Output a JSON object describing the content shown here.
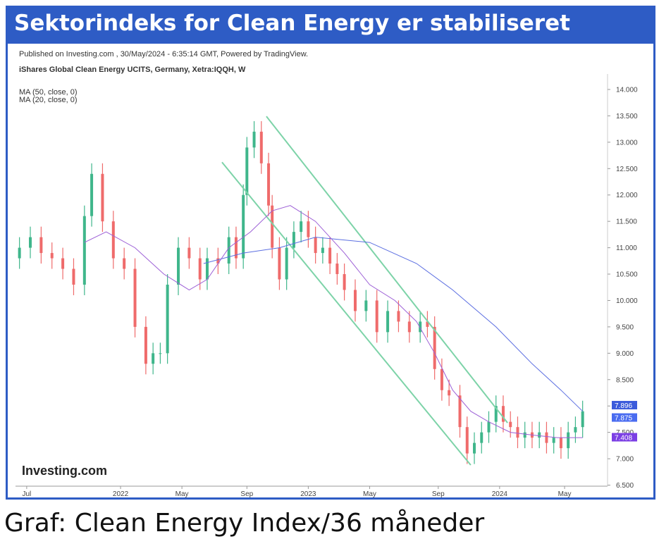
{
  "header": {
    "title": "Sektorindeks for Clean Energy er stabiliseret"
  },
  "caption": "Graf: Clean Energy Index/36 måneder",
  "chart_data": {
    "type": "candlestick",
    "published": "Published on Investing.com , 30/May/2024 - 6:35:14 GMT, Powered by TradingView.",
    "instrument": "iShares Global Clean Energy UCITS, Germany, Xetra:IQQH, W",
    "logo": "Investing.com",
    "up_color": "#3fb68b",
    "down_color": "#ef6b6b",
    "x": [
      -2,
      1,
      4,
      7,
      10,
      13,
      16,
      18,
      21,
      24,
      27,
      30,
      33,
      35,
      37,
      39,
      42,
      45,
      48,
      50,
      53,
      56,
      58,
      60,
      61,
      63,
      65,
      67,
      68,
      70,
      72,
      74,
      76,
      78,
      80,
      82,
      84,
      86,
      88,
      91,
      94,
      97,
      100,
      103,
      106,
      109,
      111,
      113,
      115,
      117,
      120,
      122,
      124,
      126,
      128,
      130,
      132,
      134,
      136,
      138,
      140,
      142,
      144,
      146,
      148,
      150,
      152,
      154
    ],
    "open": [
      10.8,
      11.0,
      11.2,
      10.9,
      10.8,
      10.6,
      10.3,
      11.6,
      12.4,
      11.5,
      10.8,
      10.6,
      9.5,
      8.8,
      9.0,
      9.0,
      10.3,
      11.0,
      10.8,
      10.4,
      10.8,
      10.7,
      11.2,
      10.8,
      12.0,
      12.9,
      13.2,
      12.6,
      11.8,
      11.0,
      10.4,
      11.0,
      11.3,
      11.5,
      11.2,
      10.9,
      11.0,
      10.7,
      10.5,
      10.2,
      9.8,
      10.0,
      9.4,
      9.8,
      9.6,
      9.4,
      9.6,
      9.5,
      8.7,
      8.3,
      8.2,
      7.6,
      7.1,
      7.3,
      7.5,
      7.7,
      8.0,
      7.7,
      7.6,
      7.4,
      7.5,
      7.4,
      7.5,
      7.3,
      7.4,
      7.2,
      7.5,
      7.6
    ],
    "high": [
      11.2,
      11.4,
      11.4,
      11.1,
      11.0,
      10.8,
      11.8,
      12.6,
      12.6,
      11.7,
      11.0,
      10.8,
      9.7,
      9.2,
      9.2,
      10.5,
      11.2,
      11.2,
      11.0,
      11.0,
      11.0,
      11.4,
      11.4,
      12.2,
      13.1,
      13.4,
      13.4,
      12.8,
      12.0,
      11.2,
      11.2,
      11.5,
      11.7,
      11.7,
      11.4,
      11.2,
      11.2,
      10.9,
      10.7,
      10.4,
      10.2,
      10.2,
      10.0,
      10.0,
      9.8,
      9.8,
      9.8,
      9.7,
      8.9,
      8.5,
      8.4,
      7.8,
      7.5,
      7.7,
      7.9,
      8.2,
      8.2,
      7.9,
      7.8,
      7.7,
      7.7,
      7.7,
      7.7,
      7.6,
      7.6,
      7.7,
      7.8,
      8.1
    ],
    "low": [
      10.6,
      10.8,
      10.7,
      10.6,
      10.4,
      10.1,
      10.1,
      11.4,
      11.3,
      10.6,
      10.4,
      9.3,
      8.6,
      8.6,
      8.8,
      8.8,
      10.1,
      10.6,
      10.2,
      10.2,
      10.5,
      10.5,
      10.6,
      10.6,
      11.8,
      12.7,
      12.4,
      11.6,
      10.8,
      10.2,
      10.2,
      10.8,
      11.1,
      11.0,
      10.7,
      10.7,
      10.5,
      10.3,
      10.0,
      9.6,
      9.6,
      9.2,
      9.2,
      9.4,
      9.2,
      9.2,
      9.3,
      8.5,
      8.1,
      8.0,
      7.4,
      6.9,
      6.9,
      7.1,
      7.3,
      7.5,
      7.5,
      7.4,
      7.2,
      7.2,
      7.2,
      7.2,
      7.1,
      7.1,
      7.0,
      7.0,
      7.3,
      7.4
    ],
    "close": [
      11.0,
      11.2,
      10.9,
      10.8,
      10.6,
      10.3,
      11.6,
      12.4,
      11.5,
      10.8,
      10.6,
      9.5,
      8.8,
      9.0,
      9.0,
      10.3,
      11.0,
      10.8,
      10.4,
      10.8,
      10.7,
      11.2,
      10.8,
      12.0,
      12.9,
      13.2,
      12.6,
      11.8,
      11.0,
      10.4,
      11.0,
      11.3,
      11.5,
      11.2,
      10.9,
      11.0,
      10.7,
      10.5,
      10.2,
      9.8,
      10.0,
      9.4,
      9.8,
      9.6,
      9.4,
      9.6,
      9.5,
      8.7,
      8.3,
      8.2,
      7.6,
      7.1,
      7.3,
      7.5,
      7.7,
      8.0,
      7.7,
      7.6,
      7.4,
      7.5,
      7.4,
      7.5,
      7.3,
      7.4,
      7.2,
      7.5,
      7.6,
      7.9
    ],
    "series": [
      {
        "name": "MA (50, close, 0)",
        "color": "#5b6ee1",
        "x": [
          49,
          60,
          70,
          80,
          95,
          108,
          118,
          130,
          140,
          148,
          154
        ],
        "values": [
          10.7,
          10.9,
          11.0,
          11.2,
          11.1,
          10.7,
          10.2,
          9.5,
          8.8,
          8.3,
          7.9
        ]
      },
      {
        "name": "MA (20, close, 0)",
        "color": "#9c5fd6",
        "x": [
          16,
          22,
          30,
          38,
          45,
          50,
          56,
          62,
          68,
          73,
          80,
          88,
          95,
          102,
          108,
          113,
          118,
          123,
          128,
          134,
          140,
          147,
          154
        ],
        "values": [
          11.1,
          11.3,
          11.0,
          10.5,
          10.2,
          10.4,
          11.0,
          11.3,
          11.7,
          11.8,
          11.5,
          10.9,
          10.3,
          10.0,
          9.6,
          9.0,
          8.3,
          7.9,
          7.7,
          7.5,
          7.45,
          7.4,
          7.4
        ]
      }
    ],
    "trendlines": [
      {
        "color": "#7dd3a8",
        "x": [
          66.4,
          133.2
        ],
        "values": [
          13.49,
          7.68
        ]
      },
      {
        "color": "#7dd3a8",
        "x": [
          54.1,
          123.0
        ],
        "values": [
          12.62,
          6.88
        ]
      }
    ],
    "price_labels": [
      {
        "value": 7.896,
        "label": "7.896",
        "color": "#3b5bdb"
      },
      {
        "value": 7.875,
        "label": "7.875",
        "color": "#4a6cf0"
      },
      {
        "value": 7.408,
        "label": "7.408",
        "color": "#7b3fe4"
      }
    ],
    "xlim": [
      -3.1,
      160.9
    ],
    "ylim": [
      6.48,
      14.16
    ],
    "xticks": [
      {
        "value": 0,
        "label": "Jul"
      },
      {
        "value": 26,
        "label": "2022"
      },
      {
        "value": 43,
        "label": "May"
      },
      {
        "value": 61,
        "label": "Sep"
      },
      {
        "value": 78,
        "label": "2023"
      },
      {
        "value": 95,
        "label": "May"
      },
      {
        "value": 114,
        "label": "Sep"
      },
      {
        "value": 131,
        "label": "2024"
      },
      {
        "value": 149,
        "label": "May"
      }
    ],
    "yticks": [
      {
        "value": 6.5,
        "label": "6.500"
      },
      {
        "value": 7,
        "label": "7.000"
      },
      {
        "value": 7.5,
        "label": "7.500"
      },
      {
        "value": 8,
        "label": "8.000"
      },
      {
        "value": 8.5,
        "label": "8.500"
      },
      {
        "value": 9,
        "label": "9.000"
      },
      {
        "value": 9.5,
        "label": "9.500"
      },
      {
        "value": 10,
        "label": "10.000"
      },
      {
        "value": 10.5,
        "label": "10.500"
      },
      {
        "value": 11,
        "label": "11.000"
      },
      {
        "value": 11.5,
        "label": "11.500"
      },
      {
        "value": 12,
        "label": "12.000"
      },
      {
        "value": 12.5,
        "label": "12.500"
      },
      {
        "value": 13,
        "label": "13.000"
      },
      {
        "value": 13.5,
        "label": "13.500"
      },
      {
        "value": 14,
        "label": "14.000"
      }
    ]
  }
}
